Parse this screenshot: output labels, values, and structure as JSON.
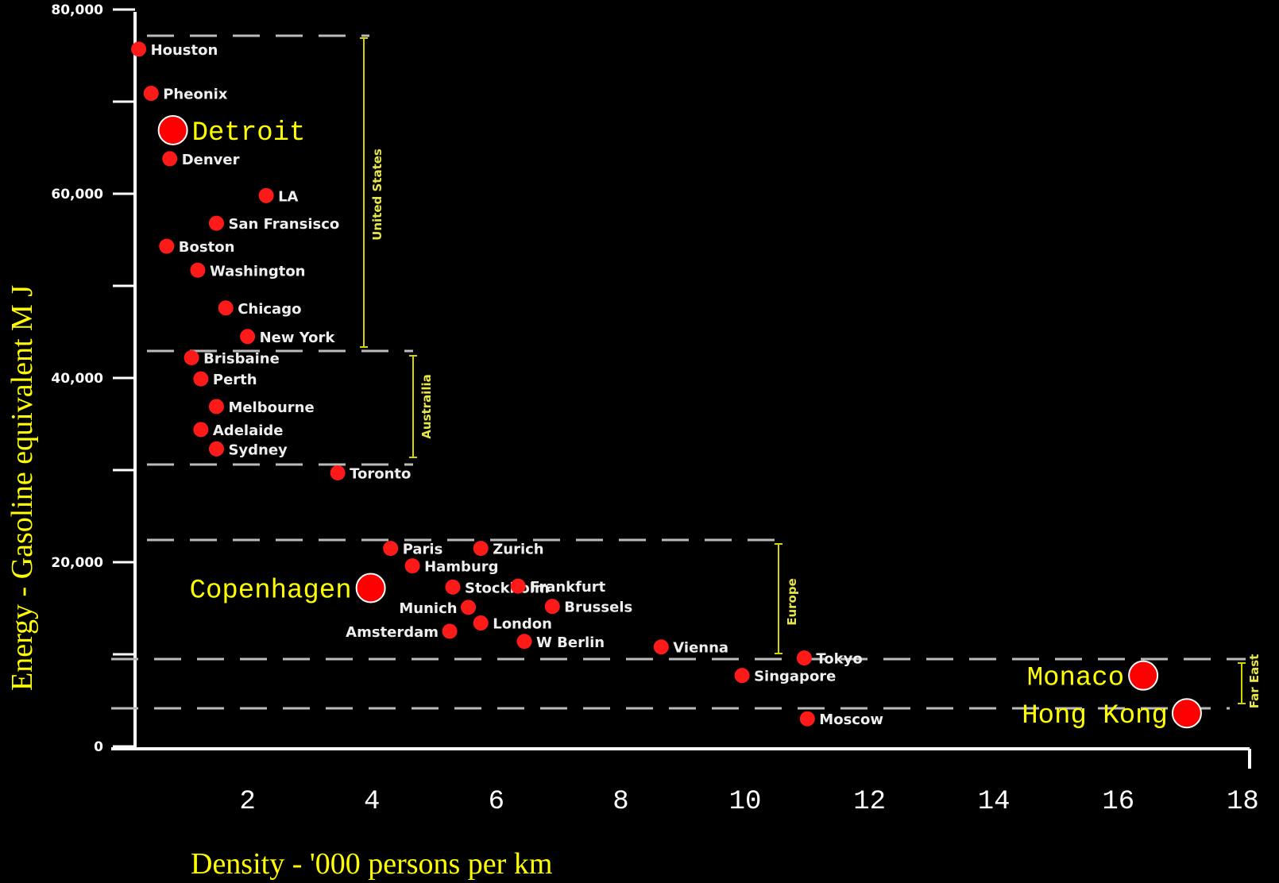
{
  "chart_data": {
    "type": "scatter",
    "xlabel": "Density - '000 persons per km",
    "ylabel": "Energy - Gasoline equivalent M J",
    "xlim": [
      0,
      18
    ],
    "ylim": [
      0,
      80000
    ],
    "x_ticks": [
      "2",
      "4",
      "6",
      "8",
      "10",
      "12",
      "14",
      "16",
      "18"
    ],
    "y_ticks": [
      "0",
      "20,000",
      "40,000",
      "60,000",
      "80,000"
    ],
    "points": [
      {
        "label": "Houston",
        "x": 0.25,
        "y": 75700
      },
      {
        "label": "Pheonix",
        "x": 0.45,
        "y": 70900
      },
      {
        "label": "Detroit",
        "x": 0.8,
        "y": 66900,
        "highlight": true
      },
      {
        "label": "Denver",
        "x": 0.75,
        "y": 63800
      },
      {
        "label": "LA",
        "x": 2.3,
        "y": 59800
      },
      {
        "label": "San Fransisco",
        "x": 1.5,
        "y": 56800
      },
      {
        "label": "Boston",
        "x": 0.7,
        "y": 54300
      },
      {
        "label": "Washington",
        "x": 1.2,
        "y": 51700
      },
      {
        "label": "Chicago",
        "x": 1.65,
        "y": 47600
      },
      {
        "label": "New York",
        "x": 2.0,
        "y": 44500
      },
      {
        "label": "Brisbaine",
        "x": 1.1,
        "y": 42200
      },
      {
        "label": "Perth",
        "x": 1.25,
        "y": 39900
      },
      {
        "label": "Melbourne",
        "x": 1.5,
        "y": 36900
      },
      {
        "label": "Adelaide",
        "x": 1.25,
        "y": 34400
      },
      {
        "label": "Sydney",
        "x": 1.5,
        "y": 32300
      },
      {
        "label": "Toronto",
        "x": 3.45,
        "y": 29700
      },
      {
        "label": "Paris",
        "x": 4.3,
        "y": 21500
      },
      {
        "label": "Zurich",
        "x": 5.75,
        "y": 21500
      },
      {
        "label": "Hamburg",
        "x": 4.65,
        "y": 19600
      },
      {
        "label": "Stockholm",
        "x": 5.3,
        "y": 17300
      },
      {
        "label": "Copenhagen",
        "x": 3.98,
        "y": 17200,
        "highlight": true
      },
      {
        "label": "Frankfurt",
        "x": 6.35,
        "y": 17400
      },
      {
        "label": "Munich",
        "x": 5.55,
        "y": 15100
      },
      {
        "label": "Brussels",
        "x": 6.9,
        "y": 15200
      },
      {
        "label": "London",
        "x": 5.75,
        "y": 13400
      },
      {
        "label": "Amsterdam",
        "x": 5.25,
        "y": 12500
      },
      {
        "label": "W Berlin",
        "x": 6.45,
        "y": 11400
      },
      {
        "label": "Vienna",
        "x": 8.65,
        "y": 10800
      },
      {
        "label": "Tokyo",
        "x": 10.95,
        "y": 9600
      },
      {
        "label": "Singapore",
        "x": 9.95,
        "y": 7700
      },
      {
        "label": "Monaco",
        "x": 16.4,
        "y": 7700,
        "highlight": true
      },
      {
        "label": "Hong Kong",
        "x": 17.1,
        "y": 3600,
        "highlight": true
      },
      {
        "label": "Moscow",
        "x": 11.0,
        "y": 3000
      }
    ],
    "regions": [
      "United States",
      "Austrailia",
      "Europe",
      "Far East"
    ],
    "grid": false,
    "colors": {
      "background": "#000000",
      "point": "#ff0000",
      "highlight_label": "#ffff00",
      "axis": "#ffffff"
    }
  }
}
